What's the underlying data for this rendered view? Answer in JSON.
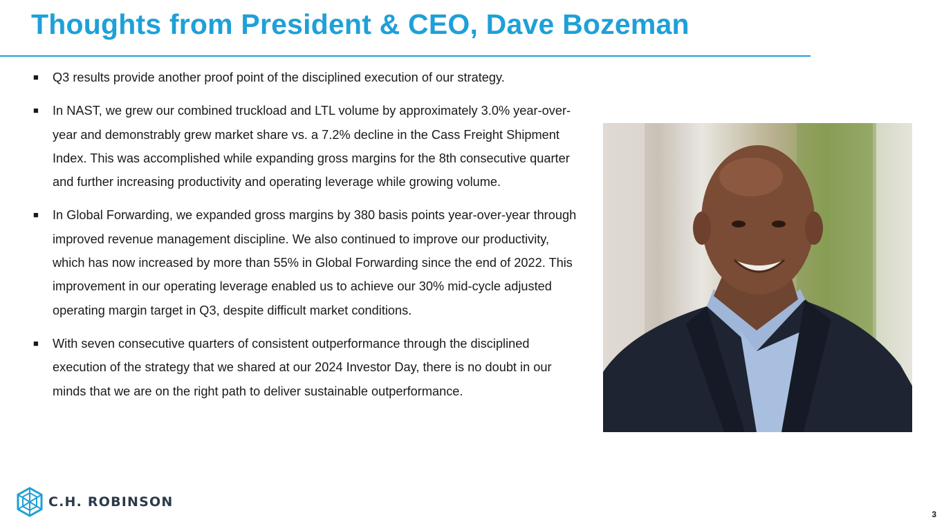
{
  "title": "Thoughts from President & CEO, Dave Bozeman",
  "bullets": [
    {
      "text": "Q3 results provide another proof point of the disciplined execution of our strategy."
    },
    {
      "text": "In NAST, we grew our combined truckload and LTL volume by approximately 3.0% year-over-year and demonstrably grew market share vs. a 7.2% decline in the Cass Freight Shipment Index. This was accomplished while expanding gross margins for the 8th consecutive quarter and further increasing productivity and operating leverage while growing volume."
    },
    {
      "text": "In Global Forwarding, we expanded gross margins by 380 basis points year-over-year through improved revenue management discipline. We also continued to improve our productivity, which has now increased by more than 55% in Global Forwarding since the end of 2022. This improvement in our operating leverage enabled us to achieve our 30% mid-cycle adjusted operating margin target in Q3, despite difficult market conditions."
    },
    {
      "text": "With seven consecutive quarters of consistent outperformance through the disciplined execution of the strategy that we shared at our 2024 Investor Day, there is no doubt in our minds that we are on the right path to deliver sustainable outperformance."
    }
  ],
  "bullet_marker": "■",
  "logo": {
    "name": "C.H. ROBINSON",
    "icon": "ch-robinson-cube-icon"
  },
  "page_number": "3",
  "colors": {
    "accent": "#1ea0d8",
    "logo_blue": "#1ea0d8",
    "logo_text": "#2b3a4a"
  }
}
